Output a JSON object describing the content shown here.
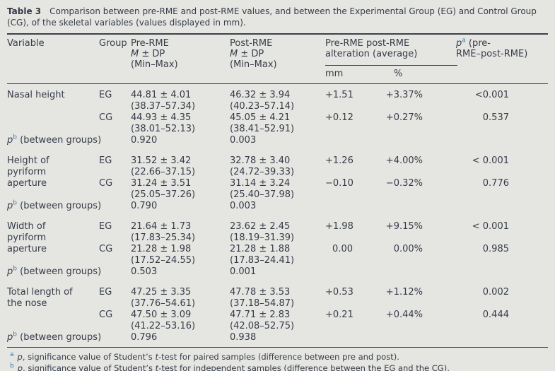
{
  "colors": {
    "background": "#e5e6e2",
    "text": "#363b48",
    "rule": "#3c404a",
    "superscript_blue": "#2f7bb3"
  },
  "title": {
    "label": "Table 3",
    "text": "Comparison between pre-RME and post-RME values, and between the Experimental Group (EG) and Control Group\n(CG), of the skeletal variables (values displayed in mm)."
  },
  "header": {
    "variable": "Variable",
    "group": "Group",
    "pre": "Pre-RME",
    "post": "Post-RME",
    "msd_m": "M",
    "msd_rest": " ± DP",
    "minmax": "(Min–Max)",
    "alteration": "Pre-RME post-RME\nalteration (average)",
    "mm": "mm",
    "pct": "%",
    "p_symbol": "p",
    "p_sup": "a",
    "p_rest1": " (pre-",
    "p_rest2": "RME–post-RME)"
  },
  "sections": [
    {
      "variable": "Nasal height",
      "rows": [
        {
          "group": "EG",
          "pre": "44.81 ± 4.01\n(38.37–57.34)",
          "post": "46.32 ± 3.94\n(40.23–57.14)",
          "mm": "+1.51",
          "pct": "+3.37%",
          "p": "<0.001"
        },
        {
          "group": "CG",
          "pre": "44.93 ± 4.35\n(38.01–52.13)",
          "post": "45.05 ± 4.21\n(38.41–52.91)",
          "mm": "+0.12",
          "pct": "+0.27%",
          "p": "0.537"
        }
      ],
      "pb": {
        "symbol": "p",
        "sup": "b",
        "label": " (between groups)",
        "pre": "0.920",
        "post": "0.003"
      }
    },
    {
      "variable": "Height of\npyriform\naperture",
      "rows": [
        {
          "group": "EG",
          "pre": "31.52 ± 3.42\n(22.66–37.15)",
          "post": "32.78 ± 3.40\n(24.72–39.33)",
          "mm": "+1.26",
          "pct": "+4.00%",
          "p": "< 0.001"
        },
        {
          "group": "CG",
          "pre": "31.24 ± 3.51\n(25.05–37.26)",
          "post": "31.14 ± 3.24\n(25.40–37.98)",
          "mm": "−0.10",
          "pct": "−0.32%",
          "p": "0.776"
        }
      ],
      "pb": {
        "symbol": "p",
        "sup": "b",
        "label": " (between groups)",
        "pre": "0.790",
        "post": "0.003"
      }
    },
    {
      "variable": "Width of\npyriform\naperture",
      "rows": [
        {
          "group": "EG",
          "pre": "21.64 ± 1.73\n(17.83–25.34)",
          "post": "23.62 ± 2.45\n(18.19–31.39)",
          "mm": "+1.98",
          "pct": "+9.15%",
          "p": "< 0.001"
        },
        {
          "group": "CG",
          "pre": "21.28 ± 1.98\n(17.52–24.55)",
          "post": "21.28 ± 1.88\n(17.83–24.41)",
          "mm": "0.00",
          "pct": "0.00%",
          "p": "0.985"
        }
      ],
      "pb": {
        "symbol": "p",
        "sup": "b",
        "label": " (between groups)",
        "pre": "0.503",
        "post": "0.001"
      }
    },
    {
      "variable": "Total length of\nthe nose",
      "rows": [
        {
          "group": "EG",
          "pre": "47.25 ± 3.35\n(37.76–54.61)",
          "post": "47.78 ± 3.53\n(37.18–54.87)",
          "mm": "+0.53",
          "pct": "+1.12%",
          "p": "0.002"
        },
        {
          "group": "CG",
          "pre": "47.50 ± 3.09\n(41.22–53.16)",
          "post": "47.71 ± 2.83\n(42.08–52.75)",
          "mm": "+0.21",
          "pct": "+0.44%",
          "p": "0.444"
        }
      ],
      "pb": {
        "symbol": "p",
        "sup": "b",
        "label": " (between groups)",
        "pre": "0.796",
        "post": "0.938"
      }
    }
  ],
  "footnotes": [
    {
      "sup": "a",
      "symbol": "p",
      "mid": ", significance value of Student’s ",
      "t": "t",
      "rest": "-test for paired samples (difference between pre and post)."
    },
    {
      "sup": "b",
      "symbol": "p",
      "mid": ", significance value of Student’s ",
      "t": "t",
      "rest": "-test for independent samples (difference between the EG and the CG)."
    }
  ]
}
